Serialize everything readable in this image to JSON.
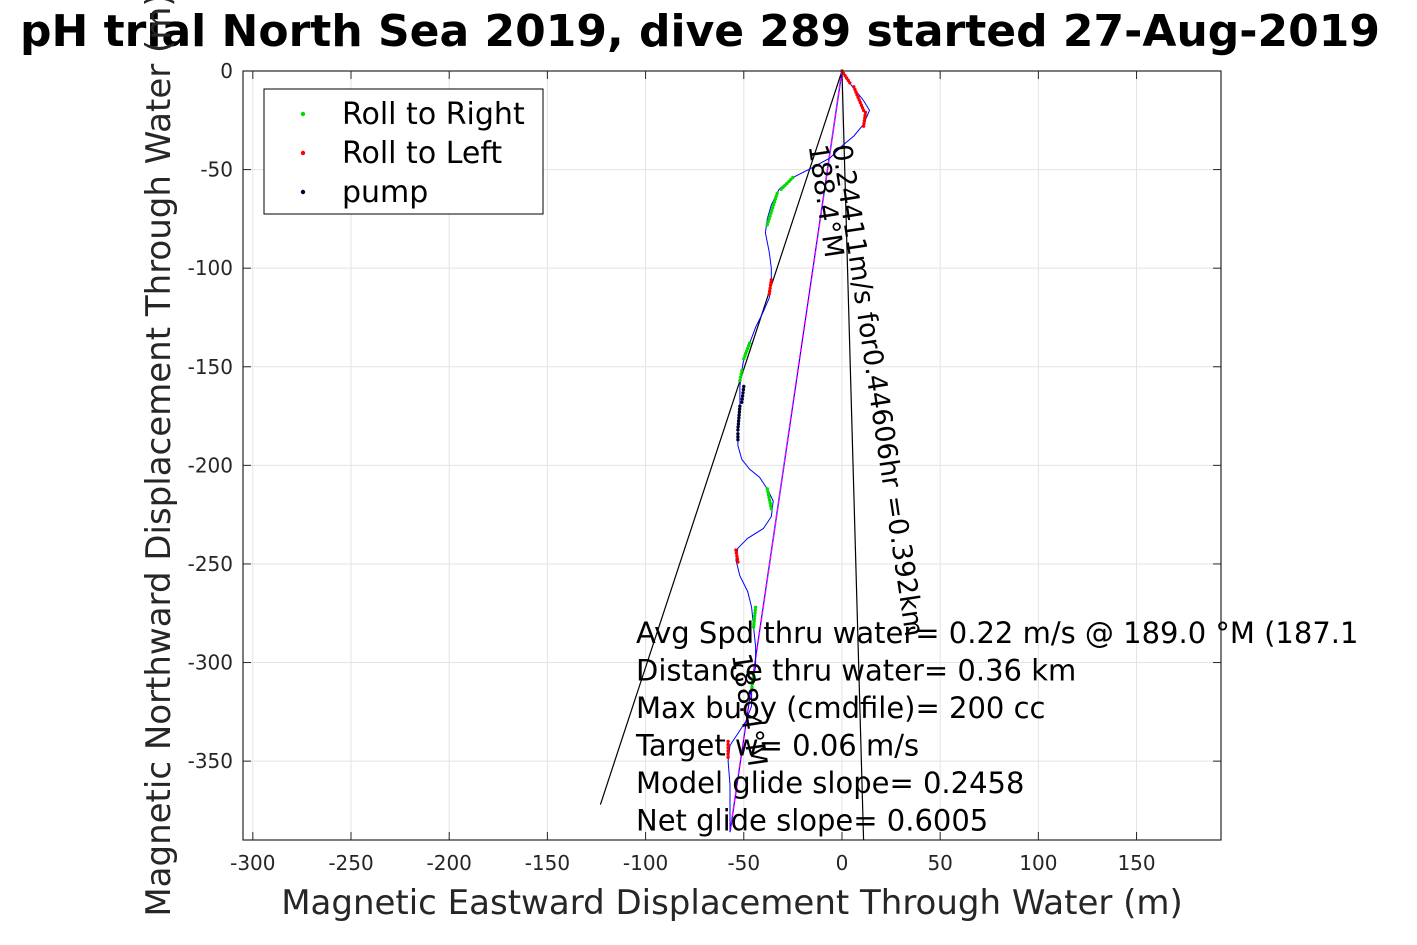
{
  "chart_data": {
    "type": "scatter",
    "title": "pH trial North Sea 2019, dive 289 started 27-Aug-2019",
    "xlabel": "Magnetic Eastward Displacement Through Water (m)",
    "ylabel": "Magnetic Northward Displacement Through Water (m)",
    "xlim": [
      -305,
      193
    ],
    "ylim": [
      -390,
      0
    ],
    "xticks": [
      -300,
      -250,
      -200,
      -150,
      -100,
      -50,
      0,
      50,
      100,
      150
    ],
    "yticks": [
      0,
      -50,
      -100,
      -150,
      -200,
      -250,
      -300,
      -350
    ],
    "xtick_labels": [
      "-300",
      "-250",
      "-200",
      "-150",
      "-100",
      "-50",
      "0",
      "50",
      "100",
      "150"
    ],
    "ytick_labels": [
      "0",
      "-50",
      "-100",
      "-150",
      "-200",
      "-250",
      "-300",
      "-350"
    ],
    "grid": true,
    "legend_position": "top-left",
    "series": [
      {
        "name": "Roll to Right",
        "color": "#00dd00"
      },
      {
        "name": "Roll to Left",
        "color": "#ff0000"
      },
      {
        "name": "pump",
        "color": "#000033"
      }
    ],
    "track": [
      [
        0,
        0
      ],
      [
        3,
        -5
      ],
      [
        7,
        -10
      ],
      [
        11,
        -15
      ],
      [
        14,
        -20
      ],
      [
        11,
        -27
      ],
      [
        6,
        -33
      ],
      [
        0,
        -38
      ],
      [
        -6,
        -44
      ],
      [
        -15,
        -49
      ],
      [
        -25,
        -54
      ],
      [
        -32,
        -60
      ],
      [
        -36,
        -68
      ],
      [
        -38,
        -75
      ],
      [
        -39,
        -82
      ],
      [
        -37,
        -92
      ],
      [
        -36,
        -100
      ],
      [
        -36,
        -108
      ],
      [
        -37,
        -115
      ],
      [
        -40,
        -122
      ],
      [
        -44,
        -130
      ],
      [
        -47,
        -138
      ],
      [
        -50,
        -146
      ],
      [
        -51,
        -152
      ],
      [
        -52,
        -160
      ],
      [
        -52,
        -170
      ],
      [
        -53,
        -180
      ],
      [
        -53,
        -190
      ],
      [
        -51,
        -197
      ],
      [
        -47,
        -202
      ],
      [
        -42,
        -206
      ],
      [
        -38,
        -212
      ],
      [
        -35,
        -218
      ],
      [
        -36,
        -226
      ],
      [
        -40,
        -232
      ],
      [
        -48,
        -237
      ],
      [
        -53,
        -242
      ],
      [
        -54,
        -248
      ],
      [
        -52,
        -256
      ],
      [
        -48,
        -264
      ],
      [
        -46,
        -272
      ],
      [
        -45,
        -282
      ],
      [
        -44,
        -292
      ],
      [
        -44,
        -302
      ],
      [
        -46,
        -312
      ],
      [
        -46,
        -322
      ],
      [
        -49,
        -330
      ],
      [
        -53,
        -336
      ],
      [
        -57,
        -342
      ],
      [
        -58,
        -350
      ],
      [
        -57,
        -362
      ],
      [
        -57,
        -375
      ],
      [
        -57,
        -386
      ]
    ],
    "right_roll_segments": [
      [
        -25,
        -54,
        -31,
        -60
      ],
      [
        -33,
        -62,
        -38,
        -78
      ],
      [
        -47,
        -138,
        -50,
        -146
      ],
      [
        -51,
        -152,
        -52,
        -157
      ],
      [
        -38,
        -212,
        -36,
        -222
      ],
      [
        -44,
        -272,
        -45,
        -282
      ],
      [
        -45,
        -306,
        -46,
        -314
      ]
    ],
    "left_roll_segments": [
      [
        0,
        0,
        4,
        -6
      ],
      [
        6,
        -8,
        11,
        -20
      ],
      [
        12,
        -21,
        11,
        -28
      ],
      [
        -36,
        -106,
        -37,
        -113
      ],
      [
        -54,
        -243,
        -53,
        -249
      ],
      [
        -58,
        -340,
        -58,
        -348
      ]
    ],
    "pump_segments": [
      [
        -50,
        -160,
        -51,
        -168
      ],
      [
        -52,
        -170,
        -53,
        -182
      ],
      [
        -53,
        -184,
        -53,
        -187
      ]
    ],
    "lines": [
      {
        "color": "#000000",
        "from": [
          0,
          0
        ],
        "to": [
          -123,
          -372
        ]
      },
      {
        "color": "#000000",
        "from": [
          0,
          0
        ],
        "to": [
          11,
          -390
        ]
      },
      {
        "color": "#0000ff",
        "from": [
          0,
          0
        ],
        "to": [
          -57,
          -386
        ]
      },
      {
        "color": "#ff00ff",
        "dashed": true,
        "from": [
          0,
          0
        ],
        "to": [
          -57,
          -386
        ]
      }
    ],
    "rotated_annotations": [
      {
        "text": "0.24411m/s for0.44606hr =0.392km",
        "x": -5,
        "y": -38,
        "angle_deg": 81.5
      },
      {
        "text": "188.4°M",
        "x": -17,
        "y": -38,
        "angle_deg": 81.5
      },
      {
        "text": "188.4°M",
        "x": -56,
        "y": -296,
        "angle_deg": 81.5
      }
    ],
    "annotations": [
      "Avg Spd thru water=  0.22 m/s @ 189.0 °M (187.1",
      "Distance thru water=  0.36 km",
      "Max buoy (cmdfile)= 200 cc",
      "Target w= 0.06 m/s",
      "Model glide slope= 0.2458",
      "Net glide slope= 0.6005"
    ]
  }
}
